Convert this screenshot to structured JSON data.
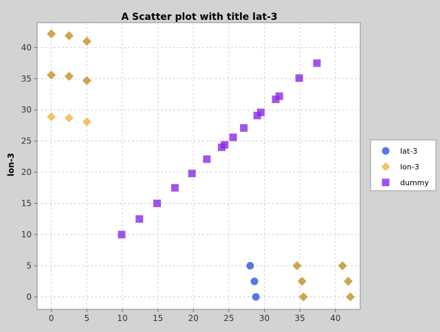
{
  "chart_data": {
    "type": "scatter",
    "title": "A Scatter plot with title lat-3",
    "xlabel": "",
    "ylabel": "lon-3",
    "xlim": [
      -2,
      43.5
    ],
    "ylim": [
      -2,
      44
    ],
    "xticks": [
      0,
      5,
      10,
      15,
      20,
      25,
      30,
      35,
      40
    ],
    "yticks": [
      0,
      5,
      10,
      15,
      20,
      25,
      30,
      35,
      40
    ],
    "grid": true,
    "legend_position": "right",
    "series": [
      {
        "name": "lat-3",
        "marker": "circle",
        "color": "#4169e1",
        "points": [
          [
            28.0,
            5.0
          ],
          [
            28.6,
            2.5
          ],
          [
            28.8,
            0.0
          ]
        ]
      },
      {
        "name": "lon-3",
        "marker": "diamond",
        "color": "#f0b84a",
        "points": [
          [
            0.0,
            42.2
          ],
          [
            2.5,
            41.9
          ],
          [
            5.0,
            41.0
          ],
          [
            0.0,
            35.6
          ],
          [
            2.5,
            35.4
          ],
          [
            5.0,
            34.7
          ],
          [
            0.0,
            28.9
          ],
          [
            2.5,
            28.7
          ],
          [
            5.0,
            28.1
          ],
          [
            34.6,
            5.0
          ],
          [
            35.3,
            2.5
          ],
          [
            35.5,
            0.0
          ],
          [
            41.0,
            5.0
          ],
          [
            41.8,
            2.5
          ],
          [
            42.1,
            0.0
          ]
        ]
      },
      {
        "name": "dummy",
        "marker": "square",
        "color": "#8a2be2",
        "points": [
          [
            9.9,
            10.0
          ],
          [
            12.4,
            12.5
          ],
          [
            14.9,
            15.0
          ],
          [
            17.4,
            17.5
          ],
          [
            19.8,
            19.8
          ],
          [
            21.9,
            22.1
          ],
          [
            24.0,
            24.0
          ],
          [
            24.4,
            24.4
          ],
          [
            25.6,
            25.6
          ],
          [
            27.1,
            27.1
          ],
          [
            29.0,
            29.1
          ],
          [
            29.5,
            29.6
          ],
          [
            31.6,
            31.7
          ],
          [
            32.1,
            32.2
          ],
          [
            34.9,
            35.1
          ],
          [
            37.4,
            37.5
          ]
        ]
      }
    ]
  }
}
